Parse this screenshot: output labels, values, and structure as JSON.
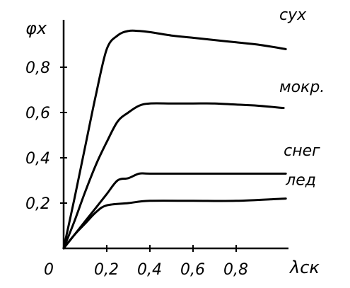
{
  "chart_data": {
    "type": "line",
    "ylabel": "φх",
    "xlabel": "λск",
    "origin_label": "0",
    "xlim": [
      0,
      1.05
    ],
    "ylim": [
      0,
      1.0
    ],
    "x_ticks": [
      0.2,
      0.4,
      0.6,
      0.8
    ],
    "x_tick_labels": [
      "0,2",
      "0,4",
      "0,6",
      "0,8"
    ],
    "y_ticks": [
      0.2,
      0.4,
      0.6,
      0.8
    ],
    "y_tick_labels": [
      "0,2",
      "0,4",
      "0,6",
      "0,8"
    ],
    "grid": false,
    "legend": "none",
    "series": [
      {
        "name": "сух",
        "x": [
          0,
          0.05,
          0.1,
          0.15,
          0.2,
          0.25,
          0.3,
          0.35,
          0.4,
          0.5,
          0.6,
          0.7,
          0.8,
          0.9,
          1.03
        ],
        "y": [
          0,
          0.22,
          0.45,
          0.68,
          0.88,
          0.94,
          0.96,
          0.96,
          0.955,
          0.94,
          0.93,
          0.92,
          0.91,
          0.9,
          0.88
        ]
      },
      {
        "name": "мокр.",
        "x": [
          0,
          0.05,
          0.1,
          0.15,
          0.2,
          0.25,
          0.3,
          0.35,
          0.4,
          0.5,
          0.6,
          0.7,
          0.8,
          0.9,
          1.02
        ],
        "y": [
          0,
          0.12,
          0.25,
          0.37,
          0.47,
          0.56,
          0.6,
          0.63,
          0.64,
          0.64,
          0.64,
          0.64,
          0.635,
          0.63,
          0.62
        ]
      },
      {
        "name": "снег",
        "x": [
          0,
          0.05,
          0.1,
          0.15,
          0.2,
          0.25,
          0.3,
          0.35,
          0.4,
          0.6,
          0.8,
          1.03
        ],
        "y": [
          0,
          0.06,
          0.12,
          0.18,
          0.24,
          0.3,
          0.31,
          0.33,
          0.33,
          0.33,
          0.33,
          0.33
        ]
      },
      {
        "name": "лед",
        "x": [
          0,
          0.05,
          0.1,
          0.15,
          0.2,
          0.3,
          0.4,
          0.6,
          0.8,
          1.03
        ],
        "y": [
          0,
          0.06,
          0.11,
          0.16,
          0.19,
          0.2,
          0.21,
          0.21,
          0.21,
          0.22
        ]
      }
    ],
    "series_label_positions": {
      "сух": [
        1.0,
        1.01
      ],
      "мокр.": [
        1.0,
        0.69
      ],
      "снег": [
        1.02,
        0.41
      ],
      "лед": [
        1.03,
        0.28
      ]
    }
  }
}
